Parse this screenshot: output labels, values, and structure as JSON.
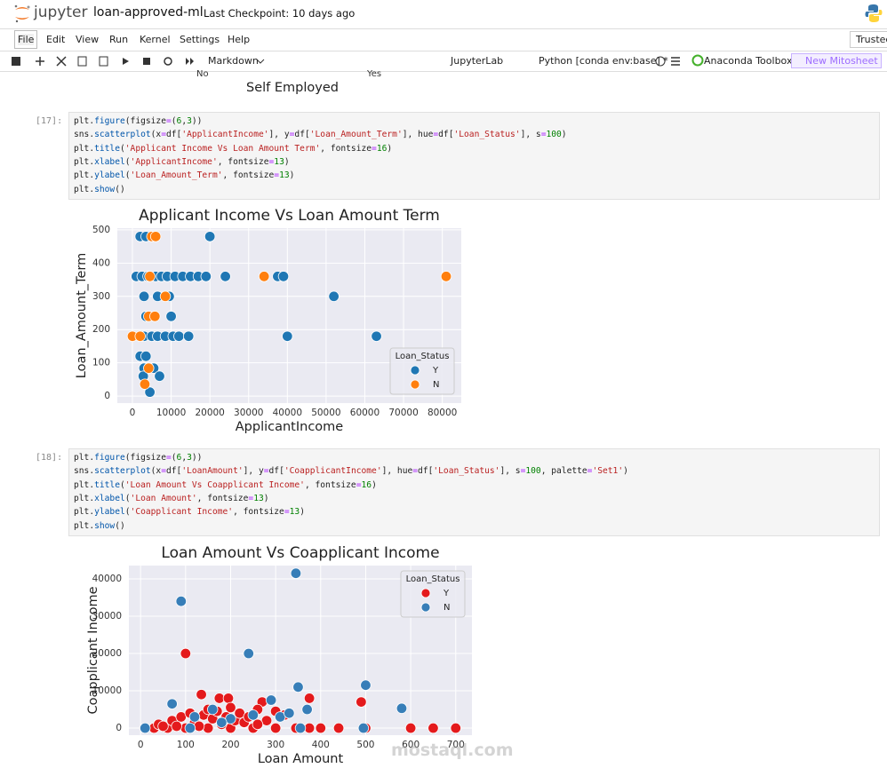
{
  "header": {
    "logo": "jupyter",
    "notebook_name": "loan-approved-ml",
    "checkpoint": "Last Checkpoint: 10 days ago"
  },
  "menu": [
    "File",
    "Edit",
    "View",
    "Run",
    "Kernel",
    "Settings",
    "Help"
  ],
  "trusted": "Trusted",
  "toolbar": {
    "cell_type": "Markdown",
    "jupyterlab": "JupyterLab",
    "kernel": "Python [conda env:base] *",
    "anaconda": "Anaconda Toolbox",
    "mitosheet": "New Mitosheet"
  },
  "previous_output": {
    "tick_no": "No",
    "tick_yes": "Yes",
    "x_label": "Self Employed"
  },
  "cells": [
    {
      "prompt": "[17]:",
      "lines": [
        "plt.figure(figsize=(6,3))",
        "sns.scatterplot(x=df['ApplicantIncome'], y=df['Loan_Amount_Term'], hue=df['Loan_Status'], s=100)",
        "plt.title('Applicant Income Vs Loan Amount Term', fontsize=16)",
        "plt.xlabel('ApplicantIncome', fontsize=13)",
        "plt.ylabel('Loan_Amount_Term', fontsize=13)",
        "plt.show()"
      ]
    },
    {
      "prompt": "[18]:",
      "lines": [
        "plt.figure(figsize=(6,3))",
        "sns.scatterplot(x=df['LoanAmount'], y=df['CoapplicantIncome'], hue=df['Loan_Status'], s=100, palette='Set1')",
        "plt.title('Loan Amount Vs Coapplicant Income', fontsize=16)",
        "plt.xlabel('Loan Amount', fontsize=13)",
        "plt.ylabel('Coapplicant Income', fontsize=13)",
        "plt.show()"
      ]
    }
  ],
  "watermark": "mostaql.com",
  "chart_data": [
    {
      "type": "scatter",
      "title": "Applicant Income Vs Loan Amount Term",
      "x_label": "ApplicantIncome",
      "y_label": "Loan_Amount_Term",
      "xlim": [
        -3900,
        84900
      ],
      "ylim": [
        -21,
        505
      ],
      "xticks": [
        0,
        10000,
        20000,
        30000,
        40000,
        50000,
        60000,
        70000,
        80000
      ],
      "yticks": [
        0,
        100,
        200,
        300,
        400,
        500
      ],
      "grid": true,
      "legend": {
        "title": "Loan_Status",
        "position": "lower right"
      },
      "series": [
        {
          "name": "Y",
          "color": "#1f77b4",
          "x": [
            2000,
            3500,
            20000,
            1000,
            2500,
            4000,
            6000,
            7500,
            9000,
            11000,
            13000,
            15000,
            17000,
            19000,
            24000,
            37500,
            39000,
            52000,
            3000,
            6500,
            9500,
            3500,
            10000,
            3000,
            5000,
            6500,
            8500,
            10500,
            12000,
            14500,
            40000,
            63000,
            2000,
            3500,
            3000,
            5500,
            2800,
            7000,
            4500
          ],
          "y": [
            480,
            480,
            480,
            360,
            360,
            360,
            360,
            360,
            360,
            360,
            360,
            360,
            360,
            360,
            360,
            360,
            360,
            300,
            300,
            300,
            300,
            240,
            240,
            180,
            180,
            180,
            180,
            180,
            180,
            180,
            180,
            180,
            120,
            120,
            84,
            84,
            60,
            60,
            12
          ]
        },
        {
          "name": "N",
          "color": "#ff7f0e",
          "x": [
            5000,
            6000,
            4500,
            34000,
            81000,
            8500,
            4200,
            5800,
            0,
            2000,
            4200,
            3200
          ],
          "y": [
            480,
            480,
            360,
            360,
            360,
            300,
            240,
            240,
            180,
            180,
            84,
            36
          ]
        }
      ]
    },
    {
      "type": "scatter",
      "title": "Loan Amount Vs Coapplicant Income",
      "x_label": "Loan Amount",
      "y_label": "Coapplicant Income",
      "xlim": [
        -26,
        736
      ],
      "ylim": [
        -1900,
        43570
      ],
      "xticks": [
        0,
        100,
        200,
        300,
        400,
        500,
        600,
        700
      ],
      "yticks": [
        0,
        10000,
        20000,
        30000,
        40000
      ],
      "grid": true,
      "legend": {
        "title": "Loan_Status",
        "position": "upper right"
      },
      "series": [
        {
          "name": "Y",
          "color": "#e41a1c",
          "x": [
            100,
            135,
            175,
            195,
            375,
            490,
            270,
            30,
            60,
            100,
            150,
            200,
            250,
            300,
            345,
            375,
            400,
            440,
            500,
            600,
            650,
            700,
            40,
            70,
            90,
            110,
            120,
            140,
            150,
            160,
            170,
            180,
            190,
            200,
            210,
            220,
            230,
            240,
            260,
            280,
            300,
            320,
            260,
            130,
            80,
            50
          ],
          "y": [
            20000,
            9000,
            8000,
            8000,
            8000,
            7000,
            7000,
            0,
            0,
            0,
            0,
            0,
            0,
            0,
            0,
            0,
            0,
            0,
            0,
            0,
            0,
            0,
            1000,
            2000,
            3000,
            4000,
            1500,
            3500,
            5000,
            2500,
            4500,
            1000,
            3000,
            5500,
            2000,
            4000,
            1500,
            3000,
            5000,
            2000,
            4500,
            3500,
            1000,
            500,
            500,
            500
          ]
        },
        {
          "name": "N",
          "color": "#377eb8",
          "x": [
            345,
            90,
            240,
            350,
            500,
            580,
            370,
            290,
            70,
            160,
            120,
            200,
            250,
            310,
            330,
            10,
            110,
            355,
            495,
            180
          ],
          "y": [
            41500,
            34000,
            20000,
            11000,
            11500,
            5300,
            5000,
            7500,
            6500,
            5000,
            3000,
            2500,
            3500,
            3000,
            4000,
            0,
            0,
            0,
            0,
            1500
          ]
        }
      ]
    }
  ]
}
